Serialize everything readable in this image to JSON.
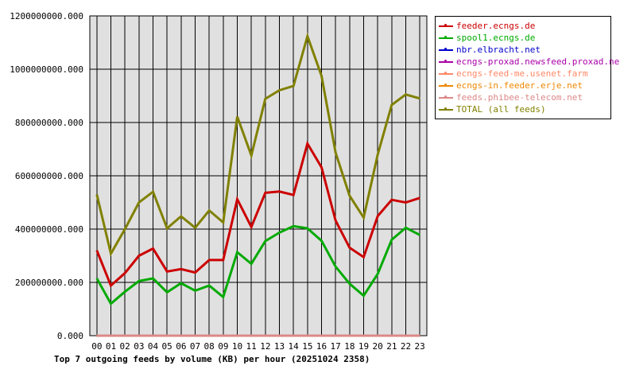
{
  "chart_data": {
    "type": "line",
    "title": "Top 7 outgoing feeds by volume (KB) per hour (20251024 2358)",
    "xlabel": "",
    "ylabel": "",
    "x": [
      "00",
      "01",
      "02",
      "03",
      "04",
      "05",
      "06",
      "07",
      "08",
      "09",
      "10",
      "11",
      "12",
      "13",
      "14",
      "15",
      "16",
      "17",
      "18",
      "19",
      "20",
      "21",
      "22",
      "23"
    ],
    "ylim": [
      0,
      1200000000
    ],
    "yticks": [
      0,
      200000000,
      400000000,
      600000000,
      800000000,
      1000000000,
      1200000000
    ],
    "ytick_labels": [
      "0.000",
      "200000000.000",
      "400000000.000",
      "600000000.000",
      "800000000.000",
      "1000000000.000",
      "1200000000.000"
    ],
    "grid": true,
    "legend_position": "right",
    "series": [
      {
        "name": "feeder.ecngs.de",
        "color": "#cc0000",
        "values": [
          320000000,
          188000000,
          235000000,
          300000000,
          327000000,
          241000000,
          250000000,
          237000000,
          284000000,
          284000000,
          512000000,
          408000000,
          536000000,
          541000000,
          528000000,
          721000000,
          632000000,
          432000000,
          330000000,
          295000000,
          449000000,
          510000000,
          500000000,
          517000000
        ]
      },
      {
        "name": "spool1.ecngs.de",
        "color": "#00aa00",
        "values": [
          215000000,
          120000000,
          165000000,
          205000000,
          215000000,
          163000000,
          197000000,
          169000000,
          188000000,
          145000000,
          313000000,
          270000000,
          355000000,
          387000000,
          411000000,
          403000000,
          356000000,
          259000000,
          195000000,
          150000000,
          232000000,
          360000000,
          405000000,
          378000000
        ]
      },
      {
        "name": "nbr.elbracht.net",
        "color": "#0000cc",
        "values": [
          0,
          0,
          0,
          0,
          0,
          0,
          0,
          0,
          0,
          0,
          0,
          0,
          0,
          0,
          0,
          0,
          0,
          0,
          0,
          0,
          0,
          0,
          0,
          0
        ]
      },
      {
        "name": "ecngs-proxad.newsfeed.proxad.net",
        "color": "#aa00aa",
        "values": [
          0,
          0,
          0,
          0,
          0,
          0,
          0,
          0,
          0,
          0,
          0,
          0,
          0,
          0,
          0,
          0,
          0,
          0,
          0,
          0,
          0,
          0,
          0,
          0
        ]
      },
      {
        "name": "ecngs-feed-me.usenet.farm",
        "color": "#ff8866",
        "values": [
          0,
          0,
          0,
          0,
          0,
          0,
          0,
          0,
          0,
          0,
          0,
          0,
          0,
          0,
          0,
          0,
          0,
          0,
          0,
          0,
          0,
          0,
          0,
          0
        ]
      },
      {
        "name": "ecngs-in.feeder.erje.net",
        "color": "#ee8800",
        "values": [
          0,
          0,
          0,
          0,
          0,
          0,
          0,
          0,
          0,
          0,
          0,
          0,
          0,
          0,
          0,
          0,
          0,
          0,
          0,
          0,
          0,
          0,
          0,
          0
        ]
      },
      {
        "name": "feeds.phibee-telecom.net",
        "color": "#dd8888",
        "values": [
          0,
          0,
          0,
          0,
          0,
          0,
          0,
          0,
          0,
          0,
          0,
          0,
          0,
          0,
          0,
          0,
          0,
          0,
          0,
          0,
          0,
          0,
          0,
          0
        ]
      },
      {
        "name": "TOTAL (all feeds)",
        "color": "#808000",
        "values": [
          530000000,
          308000000,
          400000000,
          500000000,
          540000000,
          403000000,
          448000000,
          405000000,
          470000000,
          425000000,
          822000000,
          676000000,
          889000000,
          921000000,
          937000000,
          1124000000,
          975000000,
          687000000,
          525000000,
          443000000,
          680000000,
          866000000,
          905000000,
          890000000
        ]
      }
    ]
  }
}
